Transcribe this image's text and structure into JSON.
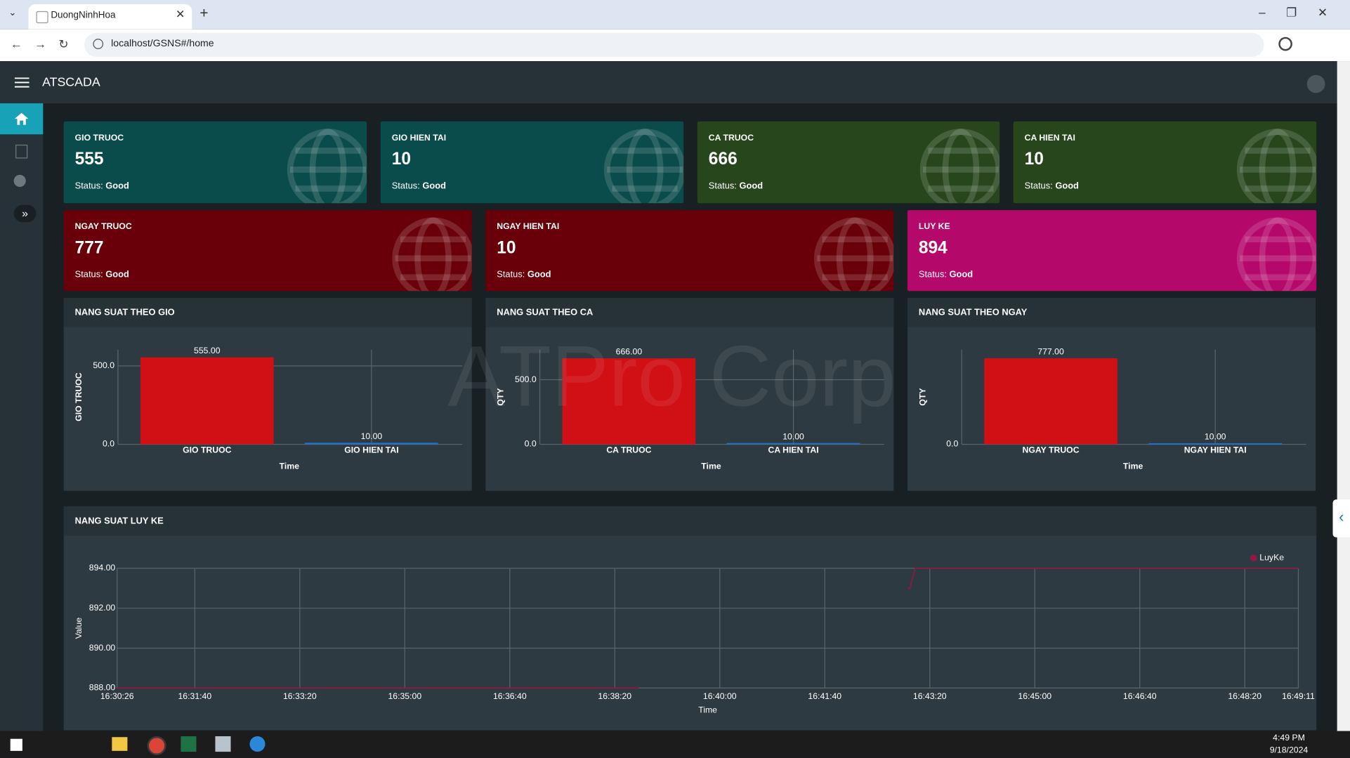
{
  "browser": {
    "tab_title": "DuongNinhHoa",
    "url": "localhost/GSNS#/home"
  },
  "app": {
    "title": "ATSCADA",
    "watermark": "ATPro Corp"
  },
  "cards": [
    {
      "label": "GIO TRUOC",
      "value": 555,
      "status_label": "Status:",
      "status": "Good",
      "color": "#0a4b4b"
    },
    {
      "label": "GIO HIEN TAI",
      "value": 10,
      "status_label": "Status:",
      "status": "Good",
      "color": "#0a4b4b"
    },
    {
      "label": "CA TRUOC",
      "value": 666,
      "status_label": "Status:",
      "status": "Good",
      "color": "#27461c"
    },
    {
      "label": "CA HIEN TAI",
      "value": 10,
      "status_label": "Status:",
      "status": "Good",
      "color": "#27461c"
    },
    {
      "label": "NGAY TRUOC",
      "value": 777,
      "status_label": "Status:",
      "status": "Good",
      "color": "#690009"
    },
    {
      "label": "NGAY HIEN TAI",
      "value": 10,
      "status_label": "Status:",
      "status": "Good",
      "color": "#690009"
    },
    {
      "label": "LUY KE",
      "value": 894,
      "status_label": "Status:",
      "status": "Good",
      "color": "#b4086b"
    }
  ],
  "bar_charts": [
    {
      "type": "bar",
      "title": "NANG SUAT THEO GIO",
      "y_label": "GIO TRUOC",
      "x_label": "Time",
      "categories": [
        "GIO TRUOC",
        "GIO HIEN TAI"
      ],
      "values": [
        555,
        10
      ],
      "value_labels": [
        "555.00",
        "10.00"
      ],
      "colors": [
        "#d01015",
        "#1e73d2"
      ],
      "ylim": [
        0,
        604
      ],
      "yticks": [
        {
          "value": 0,
          "label": "0.0"
        },
        {
          "value": 500,
          "label": "500.0"
        }
      ]
    },
    {
      "type": "bar",
      "title": "NANG SUAT THEO CA",
      "y_label": "QTY",
      "x_label": "Time",
      "categories": [
        "CA TRUOC",
        "CA HIEN TAI"
      ],
      "values": [
        666,
        10
      ],
      "value_labels": [
        "666.00",
        "10.00"
      ],
      "colors": [
        "#d01015",
        "#1e73d2"
      ],
      "ylim": [
        0,
        733
      ],
      "yticks": [
        {
          "value": 0,
          "label": "0.0"
        },
        {
          "value": 500,
          "label": "500.0"
        }
      ]
    },
    {
      "type": "bar",
      "title": "NANG SUAT THEO NGAY",
      "y_label": "QTY",
      "x_label": "Time",
      "categories": [
        "NGAY TRUOC",
        "NGAY HIEN TAI"
      ],
      "values": [
        777,
        10
      ],
      "value_labels": [
        "777.00",
        "10.00"
      ],
      "colors": [
        "#d01015",
        "#1e73d2"
      ],
      "ylim": [
        0,
        855
      ],
      "yticks": [
        {
          "value": 0,
          "label": "0.0"
        }
      ]
    }
  ],
  "line_chart": {
    "type": "line",
    "title": "NANG SUAT LUY KE",
    "y_label": "Value",
    "x_label": "Time",
    "x": [
      "16:30:26",
      "16:38:43",
      "16:40:00",
      "16:42:59",
      "16:43:01",
      "16:43:06",
      "16:49:11"
    ],
    "series": [
      {
        "name": "LuyKe",
        "color": "#8e1a44",
        "values": [
          888,
          888,
          null,
          893,
          893,
          894,
          894
        ]
      }
    ],
    "xlim": [
      "16:30:26",
      "16:49:11"
    ],
    "xticks": [
      "16:30:26",
      "16:31:40",
      "16:33:20",
      "16:35:00",
      "16:36:40",
      "16:38:20",
      "16:40:00",
      "16:41:40",
      "16:43:20",
      "16:45:00",
      "16:46:40",
      "16:48:20",
      "16:49:11"
    ],
    "ylim": [
      888,
      894
    ],
    "yticks": [
      {
        "value": 888,
        "label": "888.00"
      },
      {
        "value": 890,
        "label": "890.00"
      },
      {
        "value": 892,
        "label": "892.00"
      },
      {
        "value": 894,
        "label": "894.00"
      }
    ],
    "grid": true
  },
  "taskbar": {
    "time": "4:49 PM",
    "date": "9/18/2024"
  }
}
